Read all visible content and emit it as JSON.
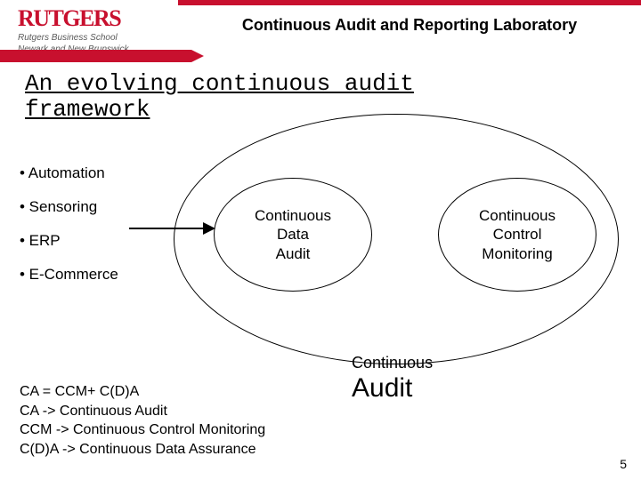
{
  "header": {
    "logo_main": "RUTGERS",
    "logo_sub_line1": "Rutgers Business School",
    "logo_sub_line2": "Newark and New Brunswick",
    "lab_title": "Continuous Audit and Reporting Laboratory",
    "brand_color": "#c8102e"
  },
  "slide_title": "An evolving continuous audit\nframework",
  "bullets": [
    "• Automation",
    "• Sensoring",
    "• ERP",
    "• E-Commerce"
  ],
  "diagram": {
    "outer_shape": "ellipse",
    "outer_border_color": "#000000",
    "inner_left_label": "Continuous\nData\nAudit",
    "inner_right_label": "Continuous\nControl\nMonitoring",
    "below_small": "Continuous",
    "below_large": "Audit"
  },
  "legend": "CA = CCM+ C(D)A\nCA -> Continuous Audit\nCCM -> Continuous Control Monitoring\nC(D)A -> Continuous Data Assurance",
  "page_number": "5",
  "colors": {
    "background": "#ffffff",
    "text": "#000000"
  }
}
